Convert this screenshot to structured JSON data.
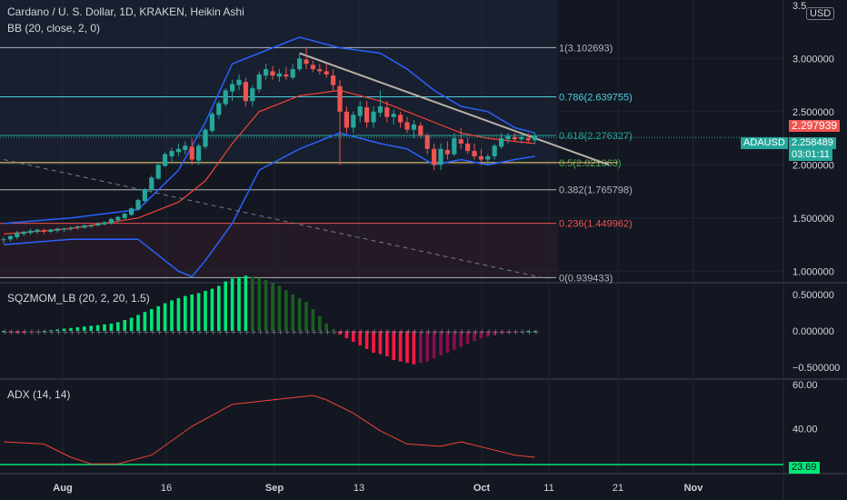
{
  "header": {
    "title": "Cardano / U. S. Dollar, 1D, KRAKEN, Heikin Ashi",
    "bb": "BB (20, close, 2, 0)",
    "sqz": "SQZMOM_LB (20, 2, 20, 1.5)",
    "adx": "ADX (14, 14)"
  },
  "currency_button": "USD",
  "price_axis": [
    "3.000000",
    "2.500000",
    "2.000000",
    "1.500000",
    "1.000000"
  ],
  "price_axis_top": "3.5",
  "sqz_axis": [
    "0.500000",
    "0.000000",
    "−0.500000"
  ],
  "adx_axis": [
    "60.00",
    "40.00"
  ],
  "time_axis": [
    "Aug",
    "16",
    "Sep",
    "13",
    "Oct",
    "11",
    "21",
    "Nov"
  ],
  "fib_levels": [
    {
      "label": "1(3.102693)",
      "value": 3.102693,
      "color": "#b2b5be"
    },
    {
      "label": "0.786(2.639755)",
      "value": 2.639755,
      "color": "#4dd0e1"
    },
    {
      "label": "0.618(2.276327)",
      "value": 2.276327,
      "color": "#26a69a"
    },
    {
      "label": "0.5(2.021063)",
      "value": 2.021063,
      "color": "#4caf50"
    },
    {
      "label": "0.382(1.765798)",
      "value": 1.765798,
      "color": "#b2b5be"
    },
    {
      "label": "0.236(1.449962)",
      "value": 1.449962,
      "color": "#ef5350"
    },
    {
      "label": "0(0.939433)",
      "value": 0.939433,
      "color": "#b2b5be"
    }
  ],
  "price_tags": {
    "high_close": "2.297939",
    "symbol": "ADAUSD",
    "last": "2.258489",
    "countdown": "03:01:11",
    "adx_last": "23.69"
  },
  "colors": {
    "up": "#26a69a",
    "down": "#ef5350",
    "bb_band": "#2962ff",
    "bb_basis": "#f44336",
    "sqz_up_strong": "#00e676",
    "sqz_up_weak": "#1b5e20",
    "sqz_down_strong": "#ff1744",
    "sqz_down_weak": "#880e4f",
    "adx_line": "#f44336",
    "adx_ref": "#00e676"
  },
  "chart_data": {
    "type": "candlestick",
    "price_range": [
      0.9,
      3.55
    ],
    "candles": [
      [
        1.3,
        1.32,
        1.26,
        1.3
      ],
      [
        1.3,
        1.34,
        1.28,
        1.33
      ],
      [
        1.32,
        1.38,
        1.3,
        1.36
      ],
      [
        1.35,
        1.38,
        1.33,
        1.37
      ],
      [
        1.36,
        1.4,
        1.34,
        1.38
      ],
      [
        1.37,
        1.4,
        1.35,
        1.39
      ],
      [
        1.38,
        1.4,
        1.35,
        1.37
      ],
      [
        1.37,
        1.4,
        1.36,
        1.39
      ],
      [
        1.38,
        1.41,
        1.36,
        1.4
      ],
      [
        1.39,
        1.41,
        1.37,
        1.4
      ],
      [
        1.4,
        1.42,
        1.38,
        1.41
      ],
      [
        1.41,
        1.43,
        1.39,
        1.42
      ],
      [
        1.41,
        1.44,
        1.4,
        1.43
      ],
      [
        1.42,
        1.44,
        1.41,
        1.43
      ],
      [
        1.43,
        1.46,
        1.42,
        1.45
      ],
      [
        1.44,
        1.47,
        1.43,
        1.46
      ],
      [
        1.45,
        1.5,
        1.44,
        1.49
      ],
      [
        1.48,
        1.52,
        1.46,
        1.51
      ],
      [
        1.5,
        1.55,
        1.48,
        1.54
      ],
      [
        1.53,
        1.6,
        1.52,
        1.59
      ],
      [
        1.58,
        1.68,
        1.57,
        1.67
      ],
      [
        1.66,
        1.78,
        1.65,
        1.77
      ],
      [
        1.76,
        1.9,
        1.75,
        1.88
      ],
      [
        1.87,
        2.02,
        1.86,
        2.0
      ],
      [
        1.99,
        2.12,
        1.98,
        2.1
      ],
      [
        2.08,
        2.16,
        2.02,
        2.13
      ],
      [
        2.12,
        2.2,
        2.08,
        2.15
      ],
      [
        2.14,
        2.22,
        2.1,
        2.18
      ],
      [
        2.17,
        2.25,
        2.0,
        2.05
      ],
      [
        2.04,
        2.2,
        2.0,
        2.18
      ],
      [
        2.17,
        2.35,
        2.15,
        2.33
      ],
      [
        2.32,
        2.5,
        2.3,
        2.48
      ],
      [
        2.47,
        2.6,
        2.43,
        2.58
      ],
      [
        2.57,
        2.72,
        2.55,
        2.7
      ],
      [
        2.69,
        2.8,
        2.6,
        2.76
      ],
      [
        2.75,
        2.85,
        2.7,
        2.8
      ],
      [
        2.78,
        2.82,
        2.55,
        2.6
      ],
      [
        2.6,
        2.75,
        2.55,
        2.72
      ],
      [
        2.71,
        2.88,
        2.68,
        2.85
      ],
      [
        2.84,
        2.95,
        2.8,
        2.9
      ],
      [
        2.88,
        2.93,
        2.8,
        2.84
      ],
      [
        2.83,
        2.9,
        2.78,
        2.86
      ],
      [
        2.85,
        2.92,
        2.8,
        2.83
      ],
      [
        2.82,
        2.95,
        2.8,
        2.9
      ],
      [
        2.9,
        3.05,
        2.88,
        3.0
      ],
      [
        2.99,
        3.1,
        2.9,
        2.95
      ],
      [
        2.94,
        2.98,
        2.87,
        2.9
      ],
      [
        2.9,
        2.95,
        2.85,
        2.88
      ],
      [
        2.88,
        2.95,
        2.82,
        2.85
      ],
      [
        2.84,
        2.9,
        2.7,
        2.75
      ],
      [
        2.74,
        2.8,
        2.0,
        2.5
      ],
      [
        2.5,
        2.55,
        2.3,
        2.35
      ],
      [
        2.35,
        2.5,
        2.3,
        2.47
      ],
      [
        2.46,
        2.6,
        2.4,
        2.55
      ],
      [
        2.54,
        2.6,
        2.35,
        2.4
      ],
      [
        2.4,
        2.55,
        2.35,
        2.5
      ],
      [
        2.49,
        2.7,
        2.45,
        2.55
      ],
      [
        2.54,
        2.6,
        2.4,
        2.45
      ],
      [
        2.45,
        2.52,
        2.38,
        2.48
      ],
      [
        2.47,
        2.5,
        2.35,
        2.4
      ],
      [
        2.4,
        2.45,
        2.3,
        2.33
      ],
      [
        2.33,
        2.42,
        2.25,
        2.38
      ],
      [
        2.37,
        2.4,
        2.25,
        2.28
      ],
      [
        2.28,
        2.3,
        2.1,
        2.15
      ],
      [
        2.15,
        2.2,
        1.95,
        2.0
      ],
      [
        2.0,
        2.2,
        1.95,
        2.15
      ],
      [
        2.14,
        2.22,
        2.05,
        2.1
      ],
      [
        2.1,
        2.3,
        2.08,
        2.25
      ],
      [
        2.24,
        2.35,
        2.15,
        2.2
      ],
      [
        2.2,
        2.25,
        2.1,
        2.13
      ],
      [
        2.13,
        2.2,
        2.05,
        2.08
      ],
      [
        2.08,
        2.15,
        2.0,
        2.05
      ],
      [
        2.05,
        2.1,
        2.0,
        2.08
      ],
      [
        2.08,
        2.2,
        2.05,
        2.18
      ],
      [
        2.17,
        2.3,
        2.15,
        2.25
      ],
      [
        2.24,
        2.3,
        2.2,
        2.27
      ],
      [
        2.26,
        2.3,
        2.22,
        2.24
      ],
      [
        2.24,
        2.28,
        2.2,
        2.26
      ],
      [
        2.25,
        2.3,
        2.2,
        2.23
      ],
      [
        2.23,
        2.3,
        2.2,
        2.27
      ]
    ],
    "bb_upper": [
      [
        0,
        1.45
      ],
      [
        10,
        1.5
      ],
      [
        20,
        1.58
      ],
      [
        26,
        1.95
      ],
      [
        30,
        2.4
      ],
      [
        34,
        2.95
      ],
      [
        38,
        3.05
      ],
      [
        44,
        3.2
      ],
      [
        50,
        3.1
      ],
      [
        56,
        3.05
      ],
      [
        60,
        2.9
      ],
      [
        64,
        2.7
      ],
      [
        68,
        2.55
      ],
      [
        72,
        2.5
      ],
      [
        76,
        2.35
      ],
      [
        79,
        2.3
      ]
    ],
    "bb_basis": [
      [
        0,
        1.35
      ],
      [
        10,
        1.4
      ],
      [
        20,
        1.5
      ],
      [
        26,
        1.65
      ],
      [
        30,
        1.85
      ],
      [
        34,
        2.2
      ],
      [
        38,
        2.5
      ],
      [
        44,
        2.65
      ],
      [
        50,
        2.7
      ],
      [
        56,
        2.6
      ],
      [
        60,
        2.5
      ],
      [
        64,
        2.4
      ],
      [
        68,
        2.3
      ],
      [
        72,
        2.25
      ],
      [
        76,
        2.22
      ],
      [
        79,
        2.2
      ]
    ],
    "bb_lower": [
      [
        0,
        1.25
      ],
      [
        10,
        1.3
      ],
      [
        20,
        1.3
      ],
      [
        26,
        1.0
      ],
      [
        28,
        0.95
      ],
      [
        30,
        1.1
      ],
      [
        34,
        1.45
      ],
      [
        38,
        1.95
      ],
      [
        44,
        2.15
      ],
      [
        50,
        2.3
      ],
      [
        56,
        2.2
      ],
      [
        60,
        2.15
      ],
      [
        64,
        2.0
      ],
      [
        68,
        2.05
      ],
      [
        72,
        2.0
      ],
      [
        76,
        2.05
      ],
      [
        79,
        2.08
      ]
    ],
    "trendline": [
      [
        44,
        3.05
      ],
      [
        90,
        2.0
      ]
    ],
    "dashed_line": [
      [
        0,
        2.05
      ],
      [
        80,
        0.94
      ]
    ],
    "sqz_momentum": [
      0.0,
      -0.02,
      -0.03,
      -0.03,
      -0.02,
      -0.01,
      0.0,
      0.01,
      0.02,
      0.03,
      0.04,
      0.05,
      0.06,
      0.07,
      0.08,
      0.09,
      0.1,
      0.12,
      0.15,
      0.18,
      0.22,
      0.26,
      0.3,
      0.34,
      0.38,
      0.42,
      0.45,
      0.48,
      0.5,
      0.52,
      0.55,
      0.58,
      0.62,
      0.68,
      0.72,
      0.74,
      0.76,
      0.75,
      0.73,
      0.7,
      0.66,
      0.62,
      0.56,
      0.5,
      0.45,
      0.4,
      0.3,
      0.2,
      0.1,
      0.02,
      -0.05,
      -0.1,
      -0.15,
      -0.2,
      -0.25,
      -0.3,
      -0.32,
      -0.35,
      -0.4,
      -0.42,
      -0.44,
      -0.46,
      -0.44,
      -0.42,
      -0.38,
      -0.34,
      -0.3,
      -0.26,
      -0.22,
      -0.18,
      -0.14,
      -0.1,
      -0.08,
      -0.06,
      -0.04,
      -0.03,
      -0.02,
      -0.01,
      0.0,
      0.0
    ],
    "adx": [
      [
        0,
        34
      ],
      [
        6,
        33
      ],
      [
        10,
        27
      ],
      [
        13,
        24
      ],
      [
        17,
        24
      ],
      [
        22,
        28
      ],
      [
        28,
        41
      ],
      [
        34,
        51
      ],
      [
        40,
        53
      ],
      [
        46,
        55
      ],
      [
        48,
        53
      ],
      [
        52,
        47
      ],
      [
        56,
        39
      ],
      [
        60,
        33
      ],
      [
        65,
        32
      ],
      [
        68,
        34
      ],
      [
        72,
        31
      ],
      [
        76,
        28
      ],
      [
        79,
        27
      ]
    ],
    "adx_ref": 23.69,
    "adx_range": [
      20,
      62
    ],
    "sqz_range": [
      -0.65,
      0.65
    ]
  }
}
